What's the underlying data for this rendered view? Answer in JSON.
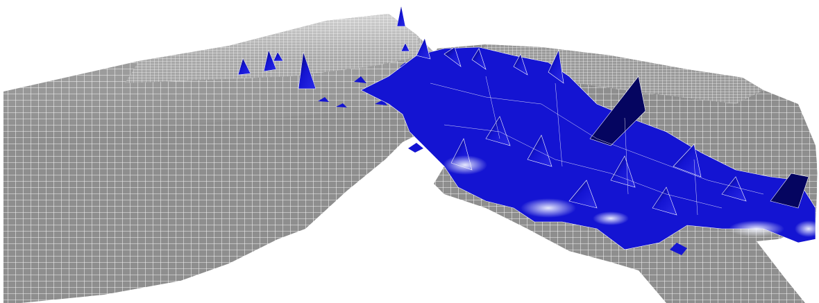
{
  "scene": {
    "kind": "3d-mesh-surface-render",
    "background_color": "#ffffff",
    "mesh_base_color": "#8e8e8e",
    "mesh_line_color": "#ffffff",
    "peak_color": "#1414d2",
    "peak_dark_color": "#050560",
    "peak_highlight_color": "#e8ecff",
    "axis_labels_visible": false,
    "text_visible": false
  }
}
